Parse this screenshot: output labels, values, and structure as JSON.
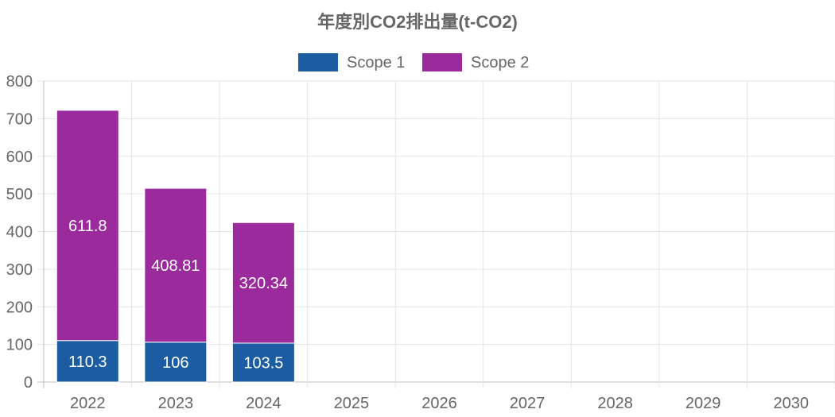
{
  "chart_data": {
    "type": "bar",
    "stacked": true,
    "title": "年度別CO2排出量(t-CO2)",
    "categories": [
      "2022",
      "2023",
      "2024",
      "2025",
      "2026",
      "2027",
      "2028",
      "2029",
      "2030"
    ],
    "series": [
      {
        "name": "Scope 1",
        "color": "#1b5ca3",
        "values": [
          110.3,
          106,
          103.5,
          null,
          null,
          null,
          null,
          null,
          null
        ]
      },
      {
        "name": "Scope 2",
        "color": "#9b2a9c",
        "values": [
          611.8,
          408.81,
          320.34,
          null,
          null,
          null,
          null,
          null,
          null
        ]
      }
    ],
    "ylim": [
      0,
      800
    ],
    "yticks": [
      0,
      100,
      200,
      300,
      400,
      500,
      600,
      700,
      800
    ],
    "grid": true,
    "legend_position": "top"
  }
}
